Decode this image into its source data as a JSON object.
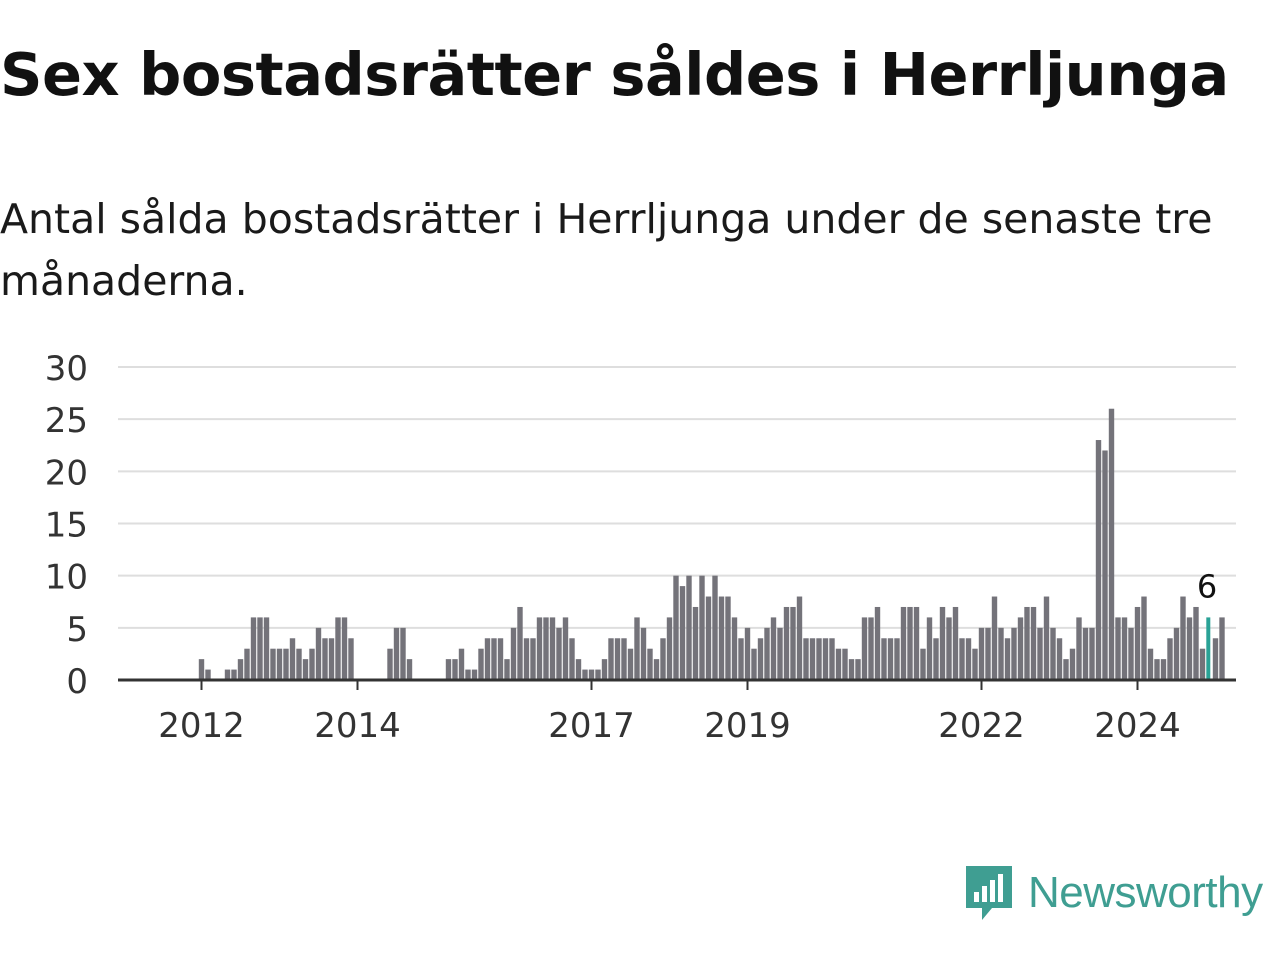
{
  "title": "Sex bostadsrätter såldes i Herrljunga",
  "subtitle": "Antal sålda bostadsrätter i Herrljunga under de senaste tre månaderna.",
  "brand": {
    "name": "Newsworthy",
    "icon": "newsworthy-logo-icon",
    "color": "#3f9e92"
  },
  "chart_data": {
    "type": "bar",
    "title": "",
    "xlabel": "",
    "ylabel": "",
    "ylim": [
      0,
      30
    ],
    "yticks": [
      0,
      5,
      10,
      15,
      20,
      25,
      30
    ],
    "grid": true,
    "x_tick_labels": [
      {
        "label": "2012",
        "index": 5
      },
      {
        "label": "2014",
        "index": 29
      },
      {
        "label": "2017",
        "index": 65
      },
      {
        "label": "2019",
        "index": 89
      },
      {
        "label": "2022",
        "index": 125
      },
      {
        "label": "2024",
        "index": 149
      }
    ],
    "bar_color": "#74737a",
    "highlight_color": "#2aa296",
    "highlight_index": 160,
    "highlight_label": "6",
    "values": [
      0,
      0,
      0,
      0,
      0,
      2,
      1,
      0,
      0,
      1,
      1,
      2,
      3,
      6,
      6,
      6,
      3,
      3,
      3,
      4,
      3,
      2,
      3,
      5,
      4,
      4,
      6,
      6,
      4,
      0,
      0,
      0,
      0,
      0,
      3,
      5,
      5,
      2,
      0,
      0,
      0,
      0,
      0,
      2,
      2,
      3,
      1,
      1,
      3,
      4,
      4,
      4,
      2,
      5,
      7,
      4,
      4,
      6,
      6,
      6,
      5,
      6,
      4,
      2,
      1,
      1,
      1,
      2,
      4,
      4,
      4,
      3,
      6,
      5,
      3,
      2,
      4,
      6,
      10,
      9,
      10,
      7,
      10,
      8,
      10,
      8,
      8,
      6,
      4,
      5,
      3,
      4,
      5,
      6,
      5,
      7,
      7,
      8,
      4,
      4,
      4,
      4,
      4,
      3,
      3,
      2,
      2,
      6,
      6,
      7,
      4,
      4,
      4,
      7,
      7,
      7,
      3,
      6,
      4,
      7,
      6,
      7,
      4,
      4,
      3,
      5,
      5,
      8,
      5,
      4,
      5,
      6,
      7,
      7,
      5,
      8,
      5,
      4,
      2,
      3,
      6,
      5,
      5,
      23,
      22,
      26,
      6,
      6,
      5,
      7,
      8,
      3,
      2,
      2,
      4,
      5,
      8,
      6,
      7,
      3,
      6,
      4,
      6
    ]
  }
}
